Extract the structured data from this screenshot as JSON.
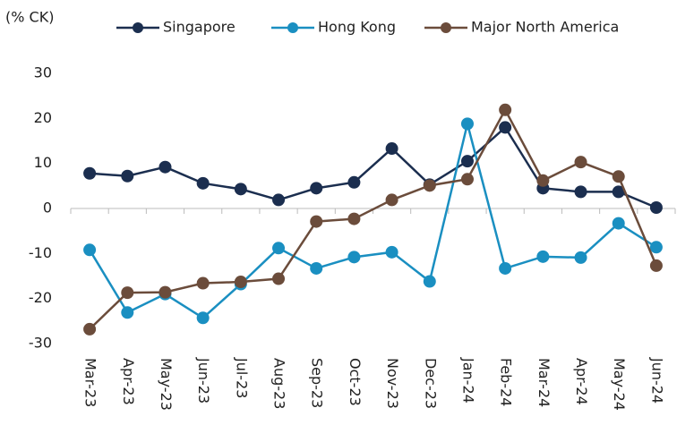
{
  "chart_data": {
    "type": "line",
    "y_label": "(% CK)",
    "categories": [
      "Mar-23",
      "Apr-23",
      "May-23",
      "Jun-23",
      "Jul-23",
      "Aug-23",
      "Sep-23",
      "Oct-23",
      "Nov-23",
      "Dec-23",
      "Jan-24",
      "Feb-24",
      "Mar-24",
      "Apr-24",
      "May-24",
      "Jun-24"
    ],
    "series": [
      {
        "name": "Singapore",
        "color": "#1b2e4f",
        "values": [
          7.8,
          7.2,
          9.2,
          5.6,
          4.3,
          1.9,
          4.5,
          5.8,
          13.3,
          5.3,
          10.5,
          18.0,
          4.5,
          3.7,
          3.7,
          0.2
        ]
      },
      {
        "name": "Hong Kong",
        "color": "#1a8fc1",
        "values": [
          -9.2,
          -23.1,
          -19.0,
          -24.3,
          -16.8,
          -8.8,
          -13.3,
          -10.8,
          -9.7,
          -16.2,
          18.8,
          -13.3,
          -10.7,
          -10.9,
          -3.3,
          -8.6
        ]
      },
      {
        "name": "Major North America",
        "color": "#6b4c3b",
        "values": [
          -26.8,
          -18.7,
          -18.6,
          -16.6,
          -16.3,
          -15.6,
          -2.9,
          -2.3,
          1.9,
          5.1,
          6.5,
          21.9,
          6.2,
          10.3,
          7.1,
          -12.7
        ]
      }
    ],
    "ylim": [
      -30,
      30
    ],
    "yticks": [
      -30,
      -20,
      -10,
      0,
      10,
      20,
      30
    ],
    "grid": false
  }
}
